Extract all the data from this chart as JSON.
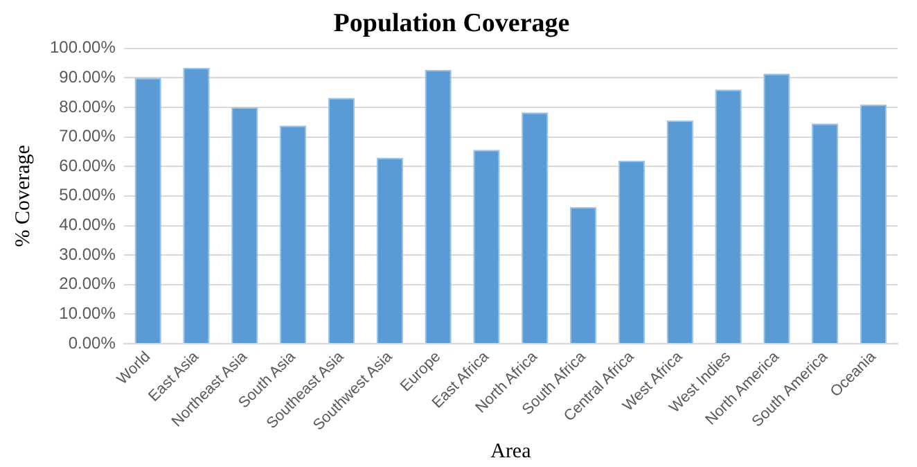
{
  "chart_data": {
    "type": "bar",
    "title": "Population Coverage",
    "xlabel": "Area",
    "ylabel": "% Coverage",
    "categories": [
      "World",
      "East Asia",
      "Northeast Asia",
      "South Asia",
      "Southeast Asia",
      "Southwest Asia",
      "Europe",
      "East Africa",
      "North Africa",
      "South Africa",
      "Central Africa",
      "West Africa",
      "West Indies",
      "North America",
      "South America",
      "Oceania"
    ],
    "values": [
      90,
      93.4,
      80,
      73.8,
      83.2,
      63,
      92.7,
      65.6,
      78.3,
      46.3,
      62,
      75.6,
      86,
      91.4,
      74.5,
      81
    ],
    "color": "#5b9bd5",
    "ylim": [
      0,
      100
    ],
    "yticks": [
      {
        "value": 0,
        "label": "0.00%"
      },
      {
        "value": 10,
        "label": "10.00%"
      },
      {
        "value": 20,
        "label": "20.00%"
      },
      {
        "value": 30,
        "label": "30.00%"
      },
      {
        "value": 40,
        "label": "40.00%"
      },
      {
        "value": 50,
        "label": "50.00%"
      },
      {
        "value": 60,
        "label": "60.00%"
      },
      {
        "value": 70,
        "label": "70.00%"
      },
      {
        "value": 80,
        "label": "80.00%"
      },
      {
        "value": 90,
        "label": "90.00%"
      },
      {
        "value": 100,
        "label": "100.00%"
      }
    ],
    "grid": "y",
    "legend": false
  }
}
